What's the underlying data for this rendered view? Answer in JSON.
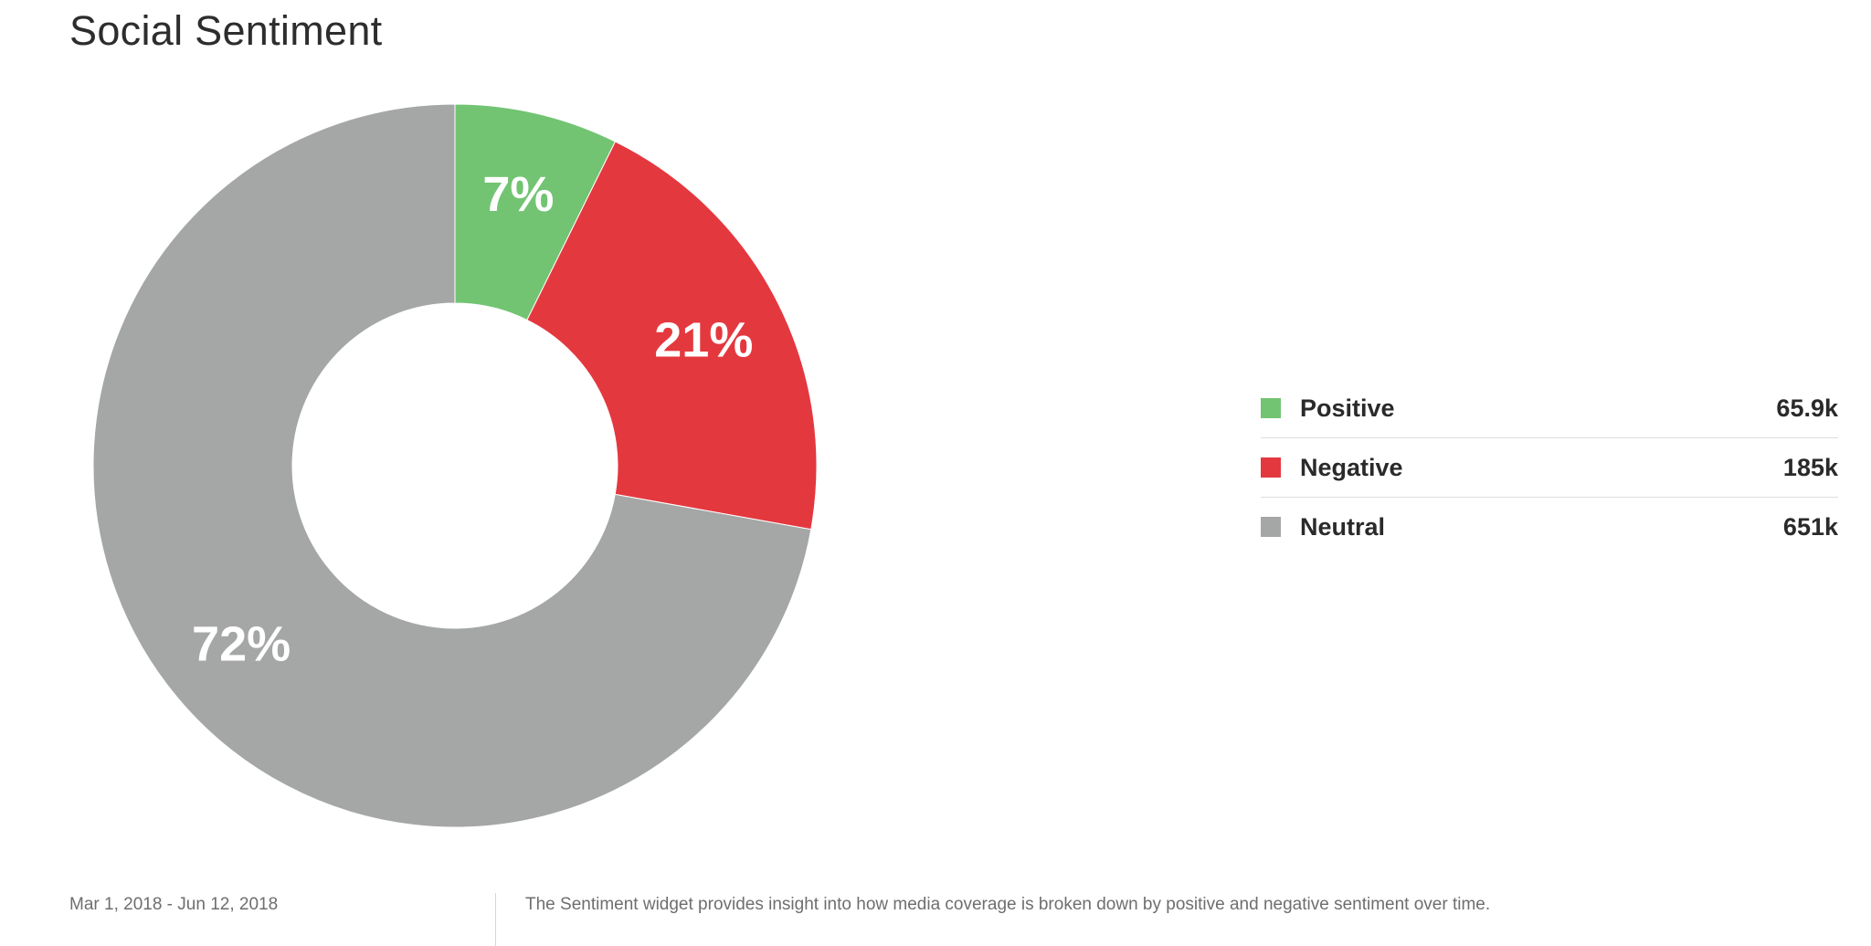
{
  "header": {
    "title": "Social Sentiment"
  },
  "chart_data": {
    "type": "pie",
    "donut": true,
    "title": "Social Sentiment",
    "categories": [
      "Positive",
      "Negative",
      "Neutral"
    ],
    "values": [
      65.9,
      185,
      651
    ],
    "value_labels": [
      "65.9k",
      "185k",
      "651k"
    ],
    "percent_labels": [
      "7%",
      "21%",
      "72%"
    ],
    "colors": [
      "#72c472",
      "#e4383f",
      "#a5a7a6"
    ],
    "legend": "right",
    "start_angle_deg": 0,
    "direction": "clockwise"
  },
  "legend": {
    "items": [
      {
        "label": "Positive",
        "value": "65.9k",
        "color": "#72c472"
      },
      {
        "label": "Negative",
        "value": "185k",
        "color": "#e4383f"
      },
      {
        "label": "Neutral",
        "value": "651k",
        "color": "#a5a7a6"
      }
    ]
  },
  "footer": {
    "date_range": "Mar 1, 2018 - Jun 12, 2018",
    "description": "The Sentiment widget provides insight into how media coverage is broken down by positive and negative sentiment over time."
  }
}
